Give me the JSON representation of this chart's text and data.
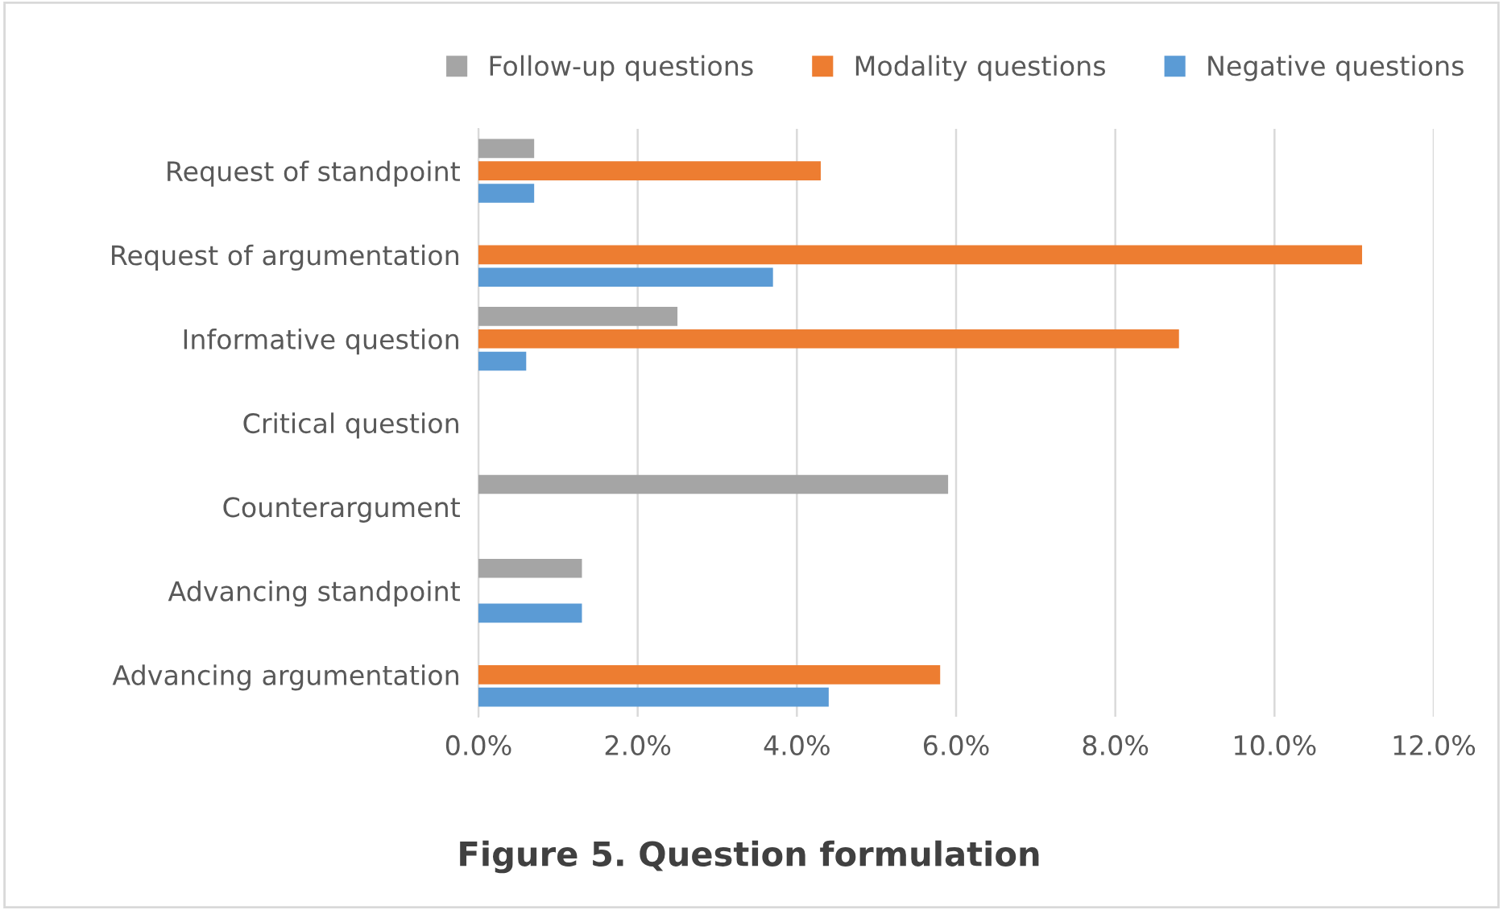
{
  "chart_data": {
    "type": "bar",
    "orientation": "horizontal",
    "title": "Figure 5. Question formulation",
    "categories": [
      "Request of standpoint",
      "Request of argumentation",
      "Informative question",
      "Critical question",
      "Counterargument",
      "Advancing standpoint",
      "Advancing argumentation"
    ],
    "series": [
      {
        "name": "Follow-up questions",
        "color": "#a5a5a5",
        "values": [
          0.7,
          0,
          2.5,
          0,
          5.9,
          1.3,
          0
        ]
      },
      {
        "name": "Modality questions",
        "color": "#ed7d31",
        "values": [
          4.3,
          11.1,
          8.8,
          0,
          0,
          0,
          5.8
        ]
      },
      {
        "name": "Negative questions",
        "color": "#5b9bd5",
        "values": [
          0.7,
          3.7,
          0.6,
          0,
          0,
          1.3,
          4.4
        ]
      }
    ],
    "xlim": [
      0,
      12
    ],
    "xticks": [
      {
        "value": 0,
        "label": "0.0%"
      },
      {
        "value": 2,
        "label": "2.0%"
      },
      {
        "value": 4,
        "label": "4.0%"
      },
      {
        "value": 6,
        "label": "6.0%"
      },
      {
        "value": 8,
        "label": "8.0%"
      },
      {
        "value": 10,
        "label": "10.0%"
      },
      {
        "value": 12,
        "label": "12.0%"
      }
    ],
    "grid": "x",
    "legend": "top"
  }
}
